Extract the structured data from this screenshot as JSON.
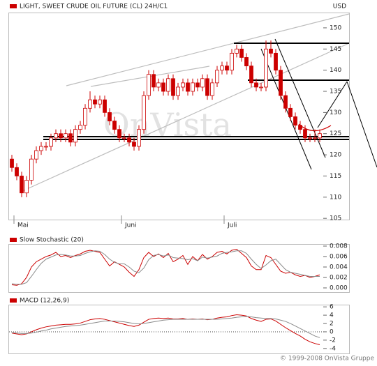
{
  "chart_data": [
    {
      "type": "candlestick",
      "title": "LIGHT, SWEET CRUDE OIL FUTURE (CL) 24H/C1",
      "unit": "USD",
      "watermark": "OnVista",
      "color": "#cc0000",
      "categories": [
        null,
        "Mai",
        null,
        null,
        null,
        null,
        null,
        null,
        null,
        null,
        null,
        null,
        null,
        null,
        null,
        null,
        null,
        null,
        null,
        null,
        null,
        null,
        null,
        "Juni",
        null,
        null,
        null,
        null,
        null,
        null,
        null,
        null,
        null,
        null,
        null,
        null,
        null,
        null,
        null,
        null,
        null,
        null,
        null,
        null,
        "Juli",
        null,
        null,
        null,
        null,
        null,
        null,
        null,
        null,
        null,
        null,
        null,
        null,
        null,
        null,
        null,
        null,
        null,
        null,
        null
      ],
      "open": [
        119,
        117,
        115,
        111,
        114,
        119,
        121,
        122,
        122,
        124,
        125,
        124,
        125,
        123,
        126,
        127,
        131,
        133,
        132,
        133,
        130,
        128,
        126,
        124,
        124,
        123,
        122,
        126,
        134,
        139,
        136,
        137,
        135,
        138,
        134,
        136,
        137,
        135,
        137,
        136,
        138,
        134,
        137,
        140,
        141,
        140,
        144,
        145,
        143,
        141,
        137,
        136,
        136,
        145,
        144,
        140,
        134,
        131,
        129,
        127,
        126,
        124,
        124,
        124
      ],
      "high": [
        120,
        118,
        116,
        115,
        120,
        122,
        123,
        123,
        125,
        126,
        126,
        126,
        126,
        127,
        128,
        132,
        135,
        134,
        134,
        134,
        131,
        129,
        127,
        125,
        125,
        124,
        127,
        135,
        140,
        140,
        138,
        138,
        139,
        139,
        137,
        138,
        138,
        138,
        138,
        139,
        139,
        138,
        141,
        142,
        142,
        145,
        146,
        146,
        144,
        142,
        138,
        137,
        147,
        147,
        145,
        141,
        135,
        132,
        130,
        128,
        127,
        125,
        126,
        126
      ],
      "low": [
        116,
        114,
        110,
        110,
        113,
        118,
        120,
        121,
        121,
        123,
        123,
        123,
        122,
        122,
        125,
        126,
        130,
        131,
        131,
        129,
        127,
        125,
        123,
        123,
        122,
        121,
        121,
        125,
        133,
        135,
        135,
        134,
        134,
        133,
        133,
        135,
        134,
        134,
        135,
        135,
        133,
        133,
        136,
        139,
        139,
        139,
        143,
        142,
        140,
        136,
        135,
        135,
        135,
        143,
        139,
        133,
        130,
        128,
        126,
        125,
        123,
        123,
        123,
        123
      ],
      "close": [
        117,
        115,
        111,
        114,
        119,
        121,
        122,
        122,
        124,
        125,
        124,
        125,
        123,
        126,
        127,
        131,
        133,
        132,
        133,
        130,
        128,
        126,
        124,
        124,
        123,
        122,
        126,
        134,
        139,
        136,
        137,
        135,
        138,
        134,
        136,
        137,
        135,
        137,
        136,
        138,
        134,
        137,
        140,
        141,
        140,
        144,
        145,
        143,
        141,
        137,
        136,
        136,
        145,
        144,
        140,
        134,
        131,
        129,
        127,
        126,
        124,
        124,
        124,
        125
      ],
      "ylim": [
        104.7,
        154.6
      ],
      "yticks": [
        105,
        110,
        115,
        120,
        125,
        130,
        135,
        140,
        145,
        150
      ],
      "grid": false
    },
    {
      "type": "line",
      "title": "Slow Stochastic (20)",
      "series": [
        {
          "color": "#cc0000",
          "values": [
            0.0006,
            0.0005,
            0.0008,
            0.002,
            0.004,
            0.005,
            0.0055,
            0.006,
            0.0063,
            0.0068,
            0.006,
            0.0062,
            0.0058,
            0.0062,
            0.0065,
            0.007,
            0.0072,
            0.007,
            0.0068,
            0.0055,
            0.0042,
            0.005,
            0.0045,
            0.004,
            0.003,
            0.0022,
            0.0035,
            0.0058,
            0.0068,
            0.006,
            0.0065,
            0.0058,
            0.0066,
            0.005,
            0.0055,
            0.0062,
            0.0045,
            0.006,
            0.0052,
            0.0064,
            0.0055,
            0.006,
            0.0068,
            0.007,
            0.0065,
            0.0072,
            0.0074,
            0.0066,
            0.0058,
            0.0042,
            0.0035,
            0.0035,
            0.0062,
            0.0058,
            0.0045,
            0.0032,
            0.0028,
            0.003,
            0.0025,
            0.0022,
            0.0024,
            0.002,
            0.0022,
            0.0025
          ]
        },
        {
          "color": "#8a8a8a",
          "values": [
            0.0008,
            0.0007,
            0.0007,
            0.001,
            0.0022,
            0.0035,
            0.0047,
            0.0055,
            0.0059,
            0.0063,
            0.0064,
            0.0063,
            0.0061,
            0.0061,
            0.0062,
            0.0066,
            0.0069,
            0.0071,
            0.007,
            0.0064,
            0.0055,
            0.0049,
            0.0046,
            0.0046,
            0.004,
            0.0032,
            0.0029,
            0.0038,
            0.0054,
            0.0062,
            0.0064,
            0.0061,
            0.0063,
            0.0058,
            0.0057,
            0.0056,
            0.0054,
            0.0056,
            0.0052,
            0.0059,
            0.0057,
            0.0059,
            0.0061,
            0.0066,
            0.0068,
            0.0069,
            0.0071,
            0.0071,
            0.0066,
            0.0055,
            0.0045,
            0.0037,
            0.0044,
            0.0052,
            0.0055,
            0.0045,
            0.0035,
            0.003,
            0.0028,
            0.0026,
            0.0024,
            0.0022,
            0.0022,
            0.0022
          ]
        }
      ],
      "ylim": [
        -0.00067,
        0.0088
      ],
      "yticks": [
        {
          "value": 0,
          "label": "0.000"
        },
        0.002,
        0.004,
        0.006,
        0.008
      ],
      "zero_line": false
    },
    {
      "type": "line",
      "title": "MACD (12,26,9)",
      "series": [
        {
          "color": "#cc0000",
          "values": [
            -0.3,
            -0.5,
            -0.7,
            -0.5,
            0,
            0.5,
            0.9,
            1.2,
            1.4,
            1.6,
            1.7,
            1.8,
            1.8,
            1.9,
            2.1,
            2.5,
            2.9,
            3.1,
            3.2,
            3.0,
            2.7,
            2.4,
            2.1,
            1.8,
            1.5,
            1.3,
            1.6,
            2.3,
            3.0,
            3.2,
            3.3,
            3.2,
            3.3,
            3.1,
            3.1,
            3.2,
            3.0,
            3.1,
            3.0,
            3.1,
            2.9,
            3.0,
            3.3,
            3.5,
            3.6,
            3.9,
            4.1,
            4.0,
            3.8,
            3.2,
            2.8,
            2.5,
            3.0,
            3.1,
            2.6,
            1.8,
            1.0,
            0.3,
            -0.4,
            -1.0,
            -1.8,
            -2.4,
            -2.8,
            -3.1
          ]
        },
        {
          "color": "#8a8a8a",
          "values": [
            -0.2,
            -0.3,
            -0.4,
            -0.4,
            -0.3,
            -0.1,
            0.2,
            0.4,
            0.7,
            0.9,
            1.1,
            1.3,
            1.4,
            1.5,
            1.6,
            1.8,
            2.0,
            2.2,
            2.4,
            2.6,
            2.6,
            2.6,
            2.5,
            2.4,
            2.2,
            2.0,
            1.9,
            2.0,
            2.2,
            2.4,
            2.6,
            2.8,
            2.9,
            3.0,
            3.0,
            3.0,
            3.0,
            3.0,
            3.0,
            3.0,
            3.0,
            3.0,
            3.0,
            3.1,
            3.2,
            3.3,
            3.5,
            3.6,
            3.7,
            3.6,
            3.4,
            3.3,
            3.2,
            3.2,
            3.1,
            2.8,
            2.5,
            2.0,
            1.4,
            0.8,
            0.2,
            -0.4,
            -1.0,
            -1.4
          ]
        }
      ],
      "ylim": [
        -5.2,
        7.2
      ],
      "yticks": [
        -4,
        -2,
        0,
        2,
        4,
        6
      ],
      "zero_line": true
    }
  ],
  "footer": "© 1999-2008 OnVista Gruppe"
}
